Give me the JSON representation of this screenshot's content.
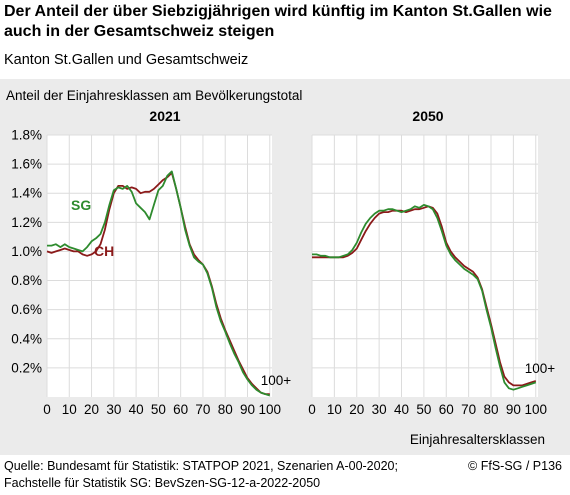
{
  "header": {
    "title": "Der Anteil der über Siebzigjährigen wird künftig im Kanton St.Gallen wie auch in der Gesamtschweiz steigen",
    "subtitle": "Kanton St.Gallen und Gesamtschweiz"
  },
  "footer": {
    "source": "Quelle: Bundesamt für Statistik: STATPOP 2021, Szenarien A-00-2020; Fachstelle für Statistik SG: BevSzen-SG-12-a-2022-2050",
    "copyright": "© FfS-SG / P136"
  },
  "colors": {
    "SG": "#2e8b2e",
    "CH": "#8b1a1a",
    "panel_bg": "#ebebeb",
    "plot_bg": "#ffffff",
    "grid": "#dcdcdc"
  },
  "chart_data": {
    "type": "line",
    "ylabel": "Anteil der Einjahresklassen am Bevölkerungstotal",
    "xlabel": "Einjahresaltersklassen",
    "xlim": [
      0,
      101
    ],
    "ylim": [
      0,
      1.8
    ],
    "x_ticks": [
      "0",
      "10",
      "20",
      "30",
      "40",
      "50",
      "60",
      "70",
      "80",
      "90",
      "100"
    ],
    "y_ticks": [
      "0.2%",
      "0.4%",
      "0.6%",
      "0.8%",
      "1.0%",
      "1.2%",
      "1.4%",
      "1.6%",
      "1.8%"
    ],
    "grid": true,
    "annotations": [
      "100+"
    ],
    "panels": [
      {
        "title": "2021",
        "series": [
          {
            "name": "SG",
            "x": [
              0,
              2,
              4,
              6,
              8,
              10,
              12,
              14,
              16,
              18,
              20,
              22,
              24,
              26,
              28,
              30,
              32,
              34,
              36,
              38,
              40,
              42,
              44,
              46,
              48,
              50,
              52,
              54,
              56,
              58,
              60,
              62,
              64,
              66,
              68,
              70,
              72,
              74,
              76,
              78,
              80,
              82,
              84,
              86,
              88,
              90,
              92,
              94,
              96,
              98,
              100
            ],
            "y": [
              1.04,
              1.04,
              1.05,
              1.03,
              1.05,
              1.03,
              1.02,
              1.01,
              1.0,
              1.03,
              1.07,
              1.09,
              1.12,
              1.2,
              1.32,
              1.42,
              1.44,
              1.43,
              1.45,
              1.41,
              1.33,
              1.3,
              1.27,
              1.22,
              1.32,
              1.42,
              1.45,
              1.52,
              1.55,
              1.43,
              1.3,
              1.15,
              1.04,
              0.96,
              0.93,
              0.91,
              0.85,
              0.75,
              0.62,
              0.52,
              0.45,
              0.37,
              0.3,
              0.24,
              0.17,
              0.12,
              0.08,
              0.05,
              0.03,
              0.02,
              0.01
            ]
          },
          {
            "name": "CH",
            "x": [
              0,
              2,
              4,
              6,
              8,
              10,
              12,
              14,
              16,
              18,
              20,
              22,
              24,
              26,
              28,
              30,
              32,
              34,
              36,
              38,
              40,
              42,
              44,
              46,
              48,
              50,
              52,
              54,
              56,
              58,
              60,
              62,
              64,
              66,
              68,
              70,
              72,
              74,
              76,
              78,
              80,
              82,
              84,
              86,
              88,
              90,
              92,
              94,
              96,
              98,
              100
            ],
            "y": [
              1.0,
              0.99,
              1.0,
              1.01,
              1.02,
              1.01,
              1.0,
              1.0,
              0.98,
              0.97,
              0.98,
              1.0,
              1.05,
              1.15,
              1.29,
              1.4,
              1.45,
              1.45,
              1.43,
              1.44,
              1.43,
              1.4,
              1.41,
              1.41,
              1.43,
              1.46,
              1.49,
              1.51,
              1.54,
              1.43,
              1.3,
              1.17,
              1.05,
              0.98,
              0.94,
              0.91,
              0.86,
              0.76,
              0.64,
              0.54,
              0.46,
              0.39,
              0.32,
              0.25,
              0.19,
              0.13,
              0.09,
              0.06,
              0.03,
              0.02,
              0.02
            ]
          }
        ]
      },
      {
        "title": "2050",
        "series": [
          {
            "name": "SG",
            "x": [
              0,
              2,
              4,
              6,
              8,
              10,
              12,
              14,
              16,
              18,
              20,
              22,
              24,
              26,
              28,
              30,
              32,
              34,
              36,
              38,
              40,
              42,
              44,
              46,
              48,
              50,
              52,
              54,
              56,
              58,
              60,
              62,
              64,
              66,
              68,
              70,
              72,
              74,
              76,
              78,
              80,
              82,
              84,
              86,
              88,
              90,
              92,
              94,
              96,
              98,
              100
            ],
            "y": [
              0.98,
              0.98,
              0.97,
              0.97,
              0.96,
              0.96,
              0.96,
              0.97,
              0.98,
              1.01,
              1.06,
              1.13,
              1.19,
              1.23,
              1.26,
              1.28,
              1.28,
              1.29,
              1.29,
              1.28,
              1.27,
              1.28,
              1.29,
              1.31,
              1.3,
              1.32,
              1.31,
              1.29,
              1.23,
              1.14,
              1.04,
              0.98,
              0.94,
              0.91,
              0.88,
              0.86,
              0.84,
              0.81,
              0.73,
              0.6,
              0.48,
              0.34,
              0.21,
              0.1,
              0.06,
              0.05,
              0.06,
              0.07,
              0.08,
              0.09,
              0.1
            ]
          },
          {
            "name": "CH",
            "x": [
              0,
              2,
              4,
              6,
              8,
              10,
              12,
              14,
              16,
              18,
              20,
              22,
              24,
              26,
              28,
              30,
              32,
              34,
              36,
              38,
              40,
              42,
              44,
              46,
              48,
              50,
              52,
              54,
              56,
              58,
              60,
              62,
              64,
              66,
              68,
              70,
              72,
              74,
              76,
              78,
              80,
              82,
              84,
              86,
              88,
              90,
              92,
              94,
              96,
              98,
              100
            ],
            "y": [
              0.96,
              0.96,
              0.96,
              0.96,
              0.96,
              0.96,
              0.96,
              0.96,
              0.97,
              0.99,
              1.02,
              1.08,
              1.14,
              1.19,
              1.23,
              1.26,
              1.27,
              1.27,
              1.28,
              1.28,
              1.28,
              1.27,
              1.28,
              1.29,
              1.29,
              1.3,
              1.31,
              1.3,
              1.26,
              1.17,
              1.06,
              1.0,
              0.96,
              0.93,
              0.9,
              0.88,
              0.86,
              0.82,
              0.74,
              0.62,
              0.5,
              0.37,
              0.24,
              0.14,
              0.1,
              0.08,
              0.08,
              0.08,
              0.09,
              0.1,
              0.11
            ]
          }
        ]
      }
    ]
  }
}
